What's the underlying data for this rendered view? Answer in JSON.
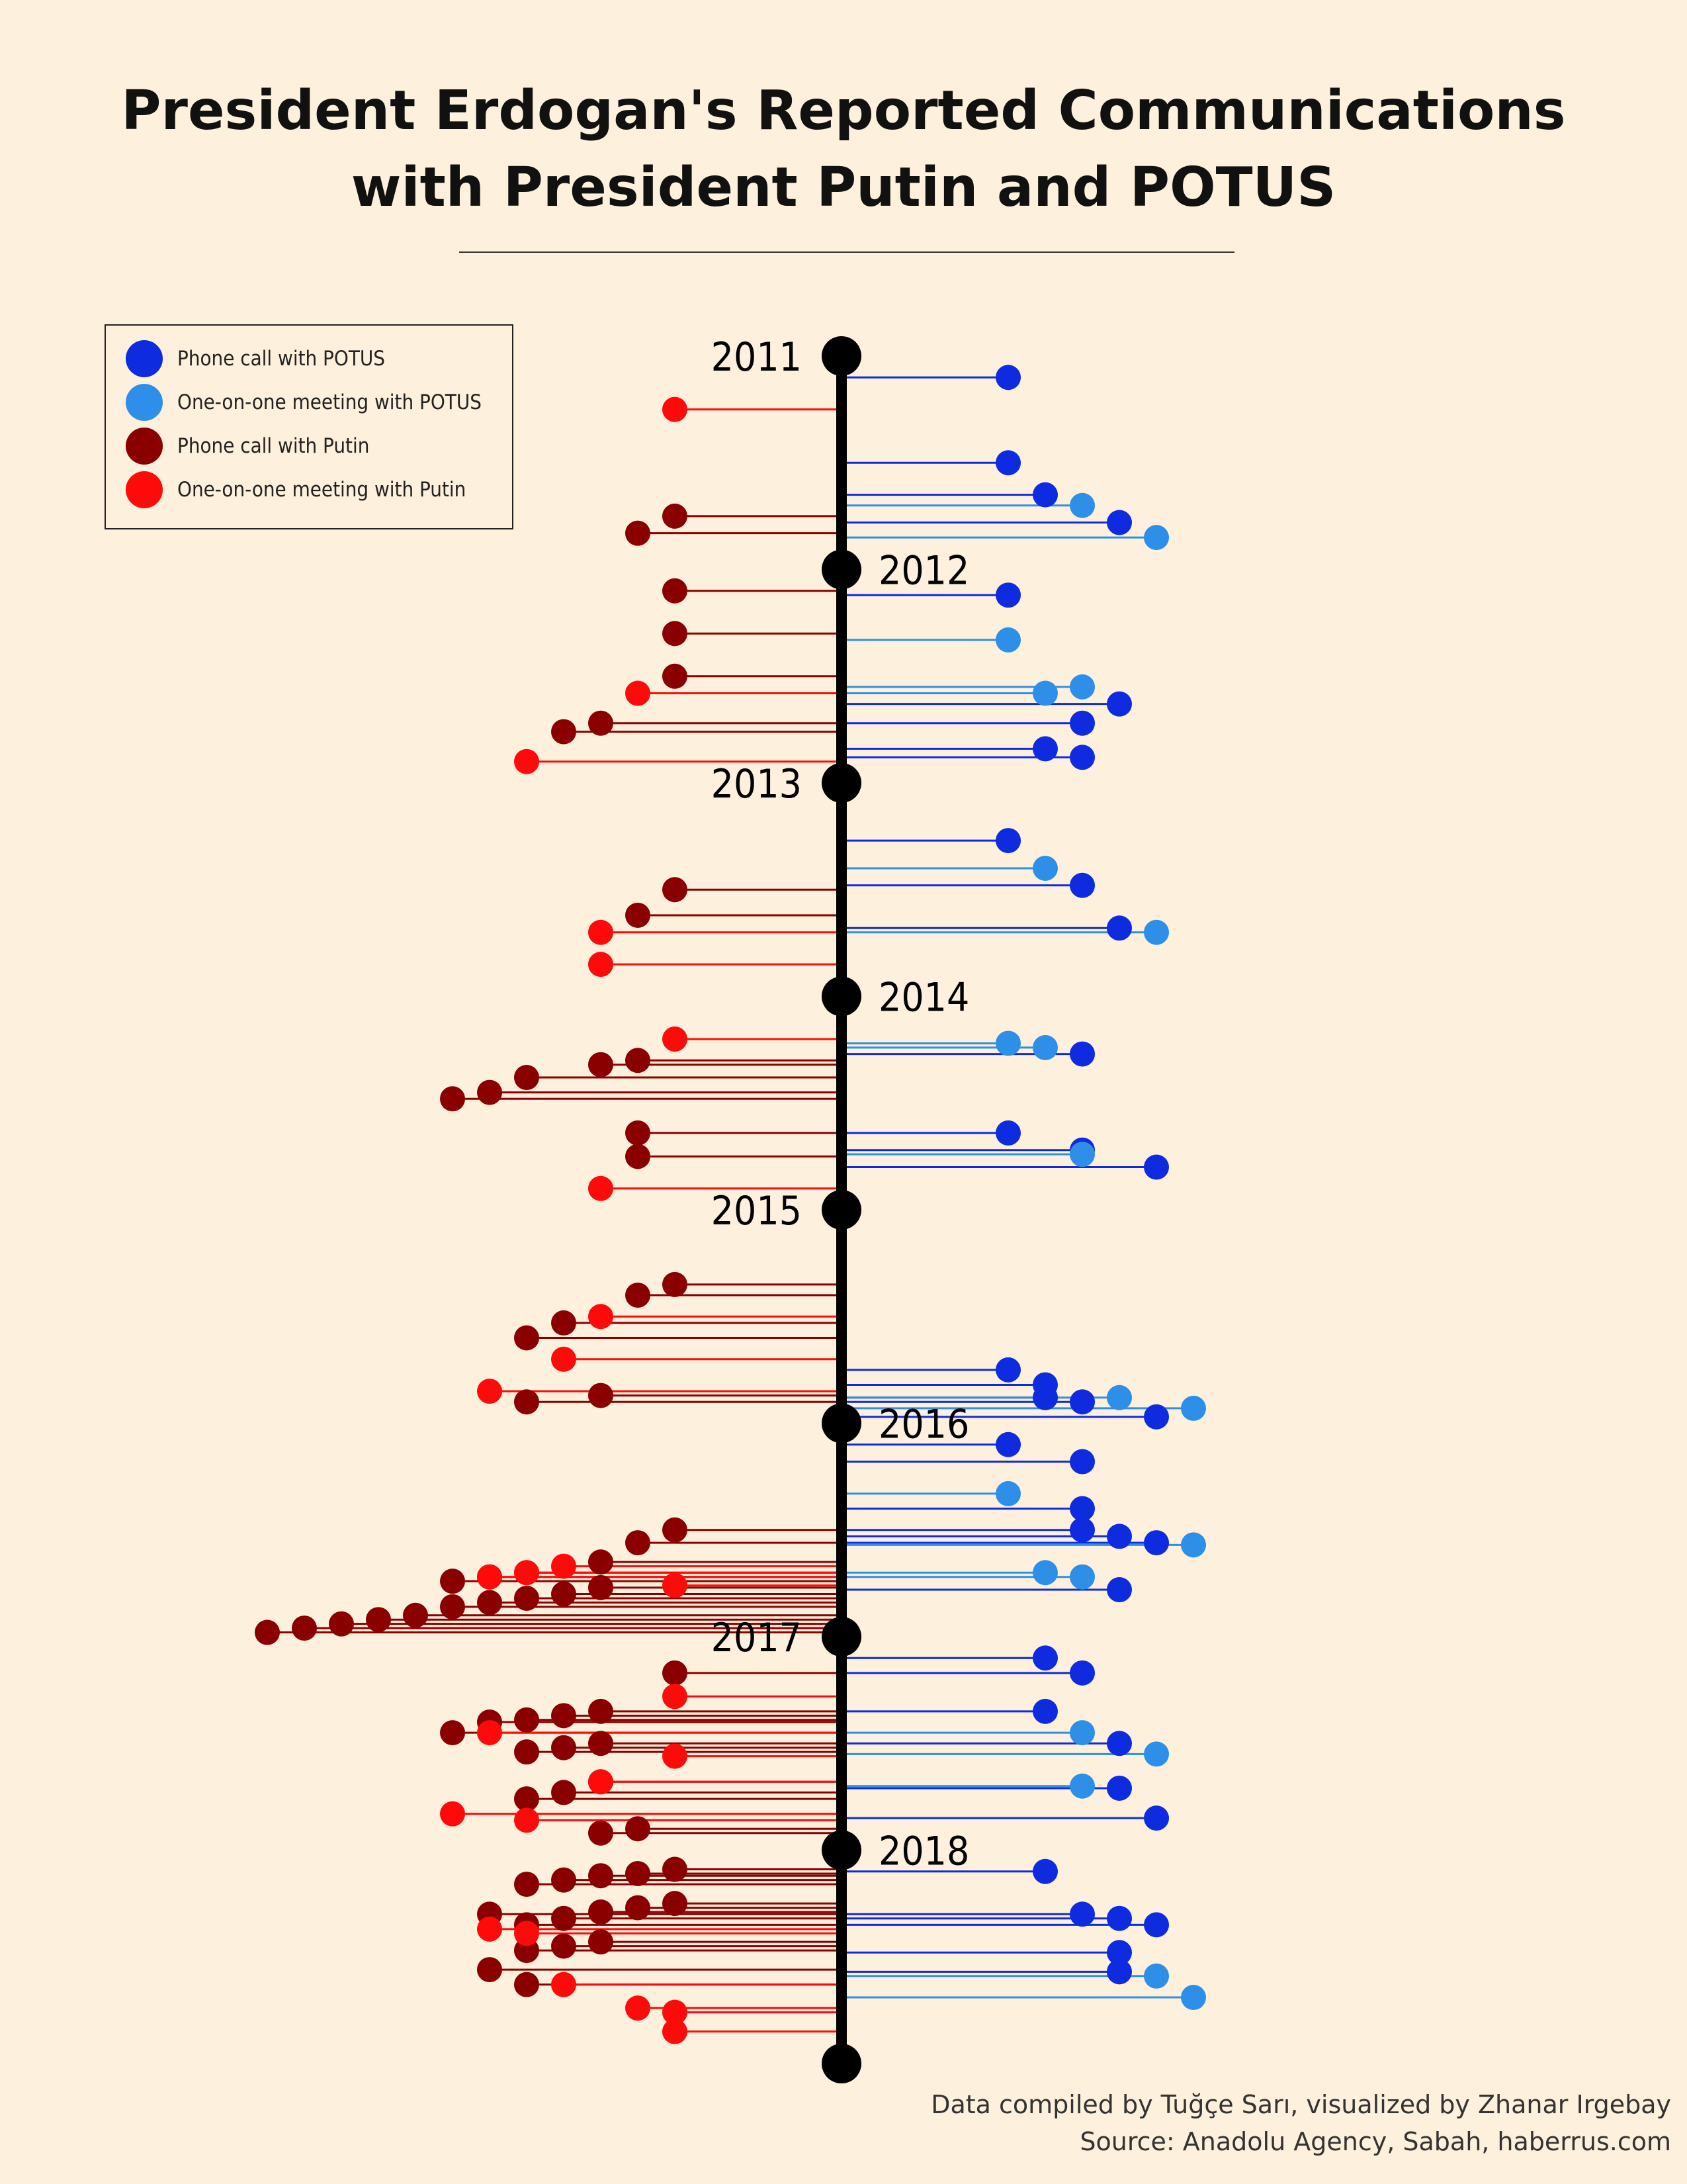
{
  "title_lines": [
    "President Erdogan's Reported Communications",
    "with President Putin and POTUS"
  ],
  "caption": {
    "line1": "Data compiled by Tuğçe Sarı, visualized by Zhanar Irgebay",
    "line2": "Source: Anadolu Agency, Sabah, haberrus.com"
  },
  "colors": {
    "background": "#fdf0dc",
    "axis": "#000000",
    "phone_potus": "#0e2be0",
    "meeting_potus": "#2e8fe8",
    "phone_putin": "#8a0000",
    "meeting_putin": "#ff0a0a"
  },
  "legend": [
    {
      "key": "phone_potus",
      "label": "Phone call with POTUS"
    },
    {
      "key": "meeting_potus",
      "label": "One-on-one meeting with POTUS"
    },
    {
      "key": "phone_putin",
      "label": "Phone call with Putin"
    },
    {
      "key": "meeting_putin",
      "label": "One-on-one meeting with Putin"
    }
  ],
  "chart_data": {
    "type": "timeline-lollipop",
    "title": "President Erdogan's Reported Communications with President Putin and POTUS",
    "time_axis": {
      "orientation": "vertical",
      "start": 2011,
      "end": 2019
    },
    "years": [
      2011,
      2012,
      2013,
      2014,
      2015,
      2016,
      2017,
      2018
    ],
    "label_sides": [
      "left",
      "right",
      "left",
      "right",
      "left",
      "right",
      "left",
      "right"
    ],
    "series": [
      {
        "key": "phone_potus",
        "name": "Phone call with POTUS",
        "side": "right",
        "values": [
          [
            2011.1,
            2
          ],
          [
            2011.5,
            2
          ],
          [
            2011.65,
            3
          ],
          [
            2011.78,
            5
          ],
          [
            2012.12,
            2
          ],
          [
            2012.63,
            5
          ],
          [
            2012.72,
            4
          ],
          [
            2012.84,
            3
          ],
          [
            2012.88,
            4
          ],
          [
            2013.27,
            2
          ],
          [
            2013.48,
            4
          ],
          [
            2013.68,
            5
          ],
          [
            2014.27,
            4
          ],
          [
            2014.64,
            2
          ],
          [
            2014.72,
            4
          ],
          [
            2014.8,
            6
          ],
          [
            2015.75,
            2
          ],
          [
            2015.82,
            3
          ],
          [
            2015.88,
            3
          ],
          [
            2015.9,
            4
          ],
          [
            2015.97,
            6
          ],
          [
            2016.1,
            2
          ],
          [
            2016.18,
            4
          ],
          [
            2016.4,
            4
          ],
          [
            2016.5,
            4
          ],
          [
            2016.53,
            5
          ],
          [
            2016.56,
            6
          ],
          [
            2016.78,
            5
          ],
          [
            2017.1,
            3
          ],
          [
            2017.17,
            4
          ],
          [
            2017.35,
            3
          ],
          [
            2017.5,
            5
          ],
          [
            2017.71,
            5
          ],
          [
            2017.85,
            6
          ],
          [
            2018.1,
            3
          ],
          [
            2018.3,
            4
          ],
          [
            2018.32,
            5
          ],
          [
            2018.35,
            6
          ],
          [
            2018.48,
            5
          ],
          [
            2018.57,
            5
          ]
        ]
      },
      {
        "key": "meeting_potus",
        "name": "One-on-one meeting with POTUS",
        "side": "right",
        "values": [
          [
            2011.7,
            4
          ],
          [
            2011.85,
            6
          ],
          [
            2012.33,
            2
          ],
          [
            2012.55,
            4
          ],
          [
            2012.58,
            3
          ],
          [
            2013.4,
            3
          ],
          [
            2013.7,
            6
          ],
          [
            2014.22,
            2
          ],
          [
            2014.24,
            3
          ],
          [
            2014.74,
            4
          ],
          [
            2015.88,
            5
          ],
          [
            2015.93,
            7
          ],
          [
            2016.33,
            2
          ],
          [
            2016.57,
            7
          ],
          [
            2016.7,
            3
          ],
          [
            2016.72,
            4
          ],
          [
            2017.45,
            4
          ],
          [
            2017.55,
            6
          ],
          [
            2017.7,
            4
          ],
          [
            2018.59,
            6
          ],
          [
            2018.69,
            7
          ]
        ]
      },
      {
        "key": "phone_putin",
        "name": "Phone call with Putin",
        "side": "left",
        "values": [
          [
            2011.75,
            2
          ],
          [
            2011.83,
            3
          ],
          [
            2012.1,
            2
          ],
          [
            2012.3,
            2
          ],
          [
            2012.5,
            2
          ],
          [
            2012.72,
            4
          ],
          [
            2012.76,
            5
          ],
          [
            2013.5,
            2
          ],
          [
            2013.62,
            3
          ],
          [
            2014.3,
            3
          ],
          [
            2014.32,
            4
          ],
          [
            2014.38,
            6
          ],
          [
            2014.45,
            7
          ],
          [
            2014.48,
            8
          ],
          [
            2014.64,
            3
          ],
          [
            2014.75,
            3
          ],
          [
            2015.35,
            2
          ],
          [
            2015.4,
            3
          ],
          [
            2015.53,
            5
          ],
          [
            2015.6,
            6
          ],
          [
            2015.87,
            4
          ],
          [
            2015.9,
            6
          ],
          [
            2016.5,
            2
          ],
          [
            2016.56,
            3
          ],
          [
            2016.65,
            4
          ],
          [
            2016.7,
            6
          ],
          [
            2016.72,
            7
          ],
          [
            2016.74,
            8
          ],
          [
            2016.77,
            4
          ],
          [
            2016.8,
            5
          ],
          [
            2016.82,
            6
          ],
          [
            2016.84,
            7
          ],
          [
            2016.86,
            8
          ],
          [
            2016.9,
            9
          ],
          [
            2016.92,
            10
          ],
          [
            2016.94,
            11
          ],
          [
            2016.96,
            12
          ],
          [
            2016.98,
            13
          ],
          [
            2017.17,
            2
          ],
          [
            2017.35,
            4
          ],
          [
            2017.37,
            5
          ],
          [
            2017.39,
            6
          ],
          [
            2017.4,
            7
          ],
          [
            2017.45,
            8
          ],
          [
            2017.5,
            4
          ],
          [
            2017.52,
            5
          ],
          [
            2017.54,
            6
          ],
          [
            2017.68,
            4
          ],
          [
            2017.73,
            5
          ],
          [
            2017.76,
            6
          ],
          [
            2017.9,
            3
          ],
          [
            2017.92,
            4
          ],
          [
            2018.09,
            2
          ],
          [
            2018.11,
            3
          ],
          [
            2018.12,
            4
          ],
          [
            2018.14,
            5
          ],
          [
            2018.16,
            6
          ],
          [
            2018.25,
            2
          ],
          [
            2018.27,
            3
          ],
          [
            2018.29,
            4
          ],
          [
            2018.32,
            5
          ],
          [
            2018.35,
            6
          ],
          [
            2018.3,
            7
          ],
          [
            2018.43,
            4
          ],
          [
            2018.45,
            5
          ],
          [
            2018.47,
            6
          ],
          [
            2018.56,
            7
          ],
          [
            2018.63,
            6
          ]
        ]
      },
      {
        "key": "meeting_putin",
        "name": "One-on-one meeting with Putin",
        "side": "left",
        "values": [
          [
            2011.25,
            2
          ],
          [
            2012.58,
            3
          ],
          [
            2012.9,
            6
          ],
          [
            2013.7,
            4
          ],
          [
            2013.85,
            4
          ],
          [
            2014.2,
            2
          ],
          [
            2014.9,
            4
          ],
          [
            2015.5,
            4
          ],
          [
            2015.7,
            5
          ],
          [
            2015.85,
            7
          ],
          [
            2016.67,
            5
          ],
          [
            2016.7,
            6
          ],
          [
            2016.72,
            7
          ],
          [
            2016.76,
            2
          ],
          [
            2017.28,
            2
          ],
          [
            2017.45,
            7
          ],
          [
            2017.56,
            2
          ],
          [
            2017.68,
            4
          ],
          [
            2017.83,
            8
          ],
          [
            2017.86,
            6
          ],
          [
            2018.37,
            7
          ],
          [
            2018.39,
            6
          ],
          [
            2018.63,
            5
          ],
          [
            2018.74,
            3
          ],
          [
            2018.76,
            2
          ],
          [
            2018.85,
            2
          ]
        ]
      }
    ]
  }
}
